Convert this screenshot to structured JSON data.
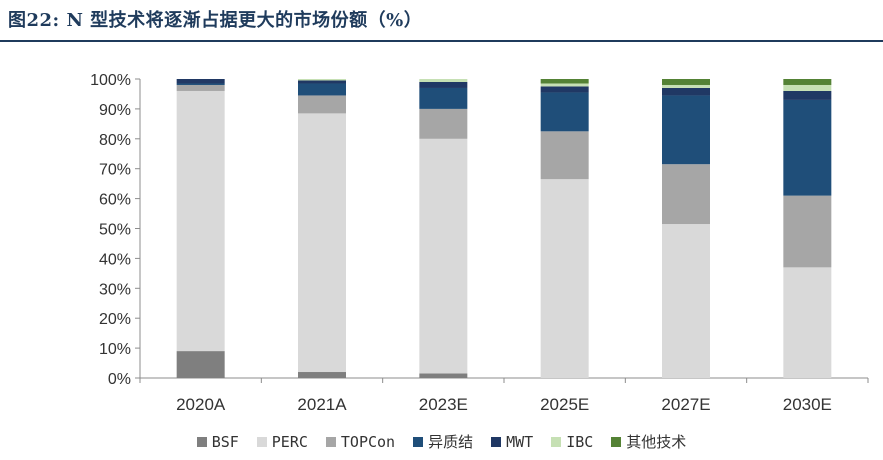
{
  "figure": {
    "title": "图22: N 型技术将逐渐占据更大的市场份额（%）"
  },
  "colors": {
    "BSF": "#7f7f7f",
    "PERC": "#d9d9d9",
    "TOPCon": "#a6a6a6",
    "异质结": "#1f4e79",
    "MWT": "#203864",
    "IBC": "#c6e0b4",
    "其他技术": "#548235"
  },
  "chart_data": {
    "type": "bar",
    "stacked": true,
    "percent": true,
    "title": "图22: N 型技术将逐渐占据更大的市场份额（%）",
    "categories": [
      "2020A",
      "2021A",
      "2023E",
      "2025E",
      "2027E",
      "2030E"
    ],
    "ylim": [
      0,
      100
    ],
    "yticks": [
      "0%",
      "10%",
      "20%",
      "30%",
      "40%",
      "50%",
      "60%",
      "70%",
      "80%",
      "90%",
      "100%"
    ],
    "grid": false,
    "legend_position": "bottom",
    "series": [
      {
        "name": "BSF",
        "values": [
          9,
          2,
          1.5,
          0,
          0,
          0
        ]
      },
      {
        "name": "PERC",
        "values": [
          87,
          86.5,
          78.5,
          66.5,
          51.5,
          37
        ]
      },
      {
        "name": "TOPCon",
        "values": [
          2,
          6,
          10,
          16,
          20,
          24
        ]
      },
      {
        "name": "异质结",
        "values": [
          0.5,
          4,
          7,
          13,
          23,
          32
        ]
      },
      {
        "name": "MWT",
        "values": [
          1.5,
          1,
          2,
          2,
          2.5,
          3
        ]
      },
      {
        "name": "IBC",
        "values": [
          0,
          0.5,
          1,
          1,
          1,
          2
        ]
      },
      {
        "name": "其他技术",
        "values": [
          0,
          0,
          0,
          1.5,
          2,
          2
        ]
      }
    ]
  }
}
